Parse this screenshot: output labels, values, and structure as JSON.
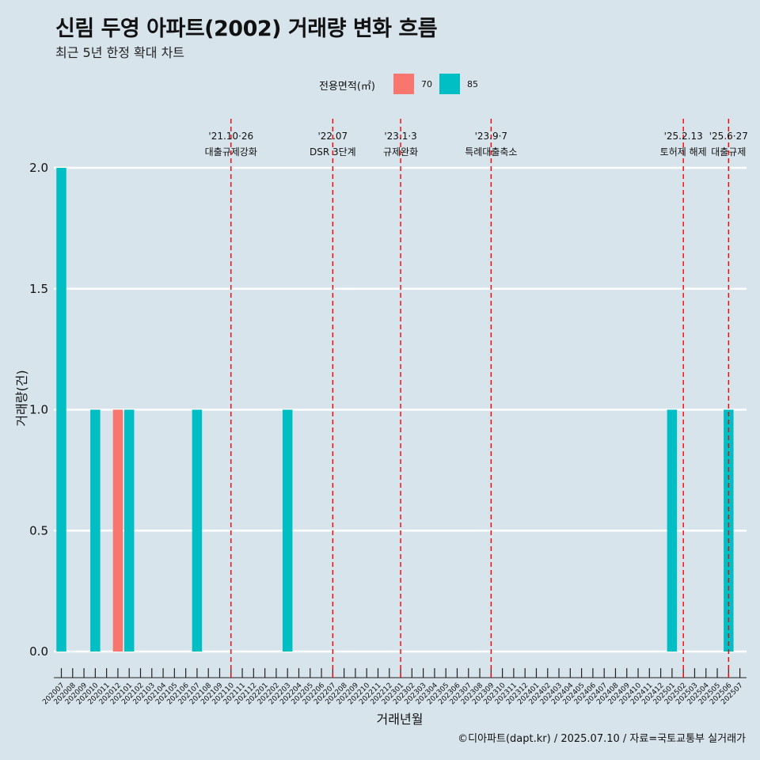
{
  "title": "신림 두영 아파트(2002) 거래량 변화 흐름",
  "subtitle": "최근 5년 한정 확대 차트",
  "caption": "©디아파트(dapt.kr) / 2025.07.10 / 자료=국토교통부 실거래가",
  "legend": {
    "title": "전용면적(㎡)",
    "items": [
      {
        "label": "70",
        "color": "#F8766D"
      },
      {
        "label": "85",
        "color": "#00BFC4"
      }
    ]
  },
  "chart_data": {
    "type": "bar",
    "xlabel": "거래년월",
    "ylabel": "거래량(건)",
    "ylim": [
      0,
      2
    ],
    "yticks": [
      "0.0",
      "0.5",
      "1.0",
      "1.5",
      "2.0"
    ],
    "ytick_values": [
      0,
      0.5,
      1,
      1.5,
      2
    ],
    "grid": "horizontal major lines, white",
    "legend_position": "top",
    "categories": [
      "202007",
      "202008",
      "202009",
      "202010",
      "202011",
      "202012",
      "202101",
      "202102",
      "202103",
      "202104",
      "202105",
      "202106",
      "202107",
      "202108",
      "202109",
      "202110",
      "202111",
      "202112",
      "202201",
      "202202",
      "202203",
      "202204",
      "202205",
      "202206",
      "202207",
      "202208",
      "202209",
      "202210",
      "202211",
      "202212",
      "202301",
      "202302",
      "202303",
      "202304",
      "202305",
      "202306",
      "202307",
      "202308",
      "202309",
      "202310",
      "202311",
      "202312",
      "202401",
      "202402",
      "202403",
      "202404",
      "202405",
      "202406",
      "202407",
      "202408",
      "202409",
      "202410",
      "202411",
      "202412",
      "202501",
      "202502",
      "202503",
      "202504",
      "202505",
      "202506",
      "202507"
    ],
    "series": [
      {
        "name": "70",
        "color": "#F8766D",
        "values": [
          0,
          0,
          0,
          0,
          0,
          1,
          0,
          0,
          0,
          0,
          0,
          0,
          0,
          0,
          0,
          0,
          0,
          0,
          0,
          0,
          0,
          0,
          0,
          0,
          0,
          0,
          0,
          0,
          0,
          0,
          0,
          0,
          0,
          0,
          0,
          0,
          0,
          0,
          0,
          0,
          0,
          0,
          0,
          0,
          0,
          0,
          0,
          0,
          0,
          0,
          0,
          0,
          0,
          0,
          0,
          0,
          0,
          0,
          0,
          0,
          0
        ]
      },
      {
        "name": "85",
        "color": "#00BFC4",
        "values": [
          2,
          0,
          0,
          1,
          0,
          0,
          1,
          0,
          0,
          0,
          0,
          0,
          1,
          0,
          0,
          0,
          0,
          0,
          0,
          0,
          1,
          0,
          0,
          0,
          0,
          0,
          0,
          0,
          0,
          0,
          0,
          0,
          0,
          0,
          0,
          0,
          0,
          0,
          0,
          0,
          0,
          0,
          0,
          0,
          0,
          0,
          0,
          0,
          0,
          0,
          0,
          0,
          0,
          0,
          1,
          0,
          0,
          0,
          0,
          1,
          0
        ]
      }
    ],
    "annotations": [
      {
        "at": "202110",
        "date": "'21.10·26",
        "label": "대출규제강화"
      },
      {
        "at": "202207",
        "date": "'22.07",
        "label": "DSR 3단계"
      },
      {
        "at": "202301",
        "date": "'23.1·3",
        "label": "규제완화"
      },
      {
        "at": "202309",
        "date": "'23.9·7",
        "label": "특례대출축소"
      },
      {
        "at": "202502",
        "date": "'25.2.13",
        "label": "토허제 해제"
      },
      {
        "at": "202506",
        "date": "'25.6·27",
        "label": "대출규제"
      }
    ]
  }
}
